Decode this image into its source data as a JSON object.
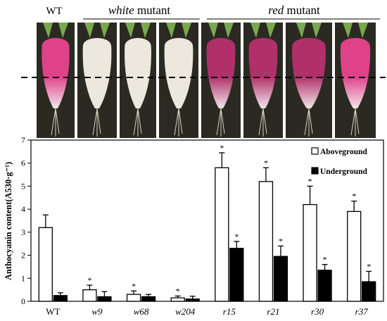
{
  "figure": {
    "header_wt": "WT",
    "header_white_italic": "white",
    "header_white_rest": " mutant",
    "header_red_italic": "red",
    "header_red_rest": " mutant"
  },
  "photo_panels": [
    {
      "label": "WT",
      "tone": "pink-top"
    },
    {
      "label": "w9",
      "tone": "white"
    },
    {
      "label": "w68",
      "tone": "white"
    },
    {
      "label": "w204",
      "tone": "white"
    },
    {
      "label": "r15",
      "tone": "red"
    },
    {
      "label": "r21",
      "tone": "red"
    },
    {
      "label": "r30",
      "tone": "red"
    },
    {
      "label": "r37",
      "tone": "pink-top"
    }
  ],
  "chart_data": {
    "type": "bar",
    "ylabel": "Anthocyanin content(A530·g⁻¹)",
    "ylim": [
      0,
      7
    ],
    "yticks": [
      0,
      1,
      2,
      3,
      4,
      5,
      6,
      7
    ],
    "categories": [
      "WT",
      "w9",
      "w68",
      "w204",
      "r15",
      "r21",
      "r30",
      "r37"
    ],
    "categories_italic": [
      false,
      true,
      true,
      true,
      true,
      true,
      true,
      true
    ],
    "legend_position": "top-right",
    "series": [
      {
        "name": "Aboveground",
        "fill": "#ffffff",
        "values": [
          3.2,
          0.5,
          0.3,
          0.15,
          5.8,
          5.2,
          4.2,
          3.9
        ],
        "errors": [
          0.55,
          0.2,
          0.15,
          0.08,
          0.65,
          0.6,
          0.8,
          0.45
        ],
        "significant": [
          false,
          true,
          true,
          true,
          true,
          true,
          true,
          true
        ]
      },
      {
        "name": "Underground",
        "fill": "#000000",
        "values": [
          0.25,
          0.2,
          0.2,
          0.1,
          2.3,
          1.95,
          1.35,
          0.85
        ],
        "errors": [
          0.12,
          0.22,
          0.1,
          0.12,
          0.3,
          0.45,
          0.25,
          0.45
        ],
        "significant": [
          false,
          false,
          false,
          false,
          true,
          true,
          true,
          true
        ]
      }
    ],
    "significance_marker": "*"
  },
  "colors": {
    "photo_bg": "#2a2a22",
    "dashed_line": "#000000",
    "white_root": "#ece8de",
    "red_root": "#b0306a",
    "pink_root": "#e0428a",
    "leaf": "#7aa850"
  }
}
